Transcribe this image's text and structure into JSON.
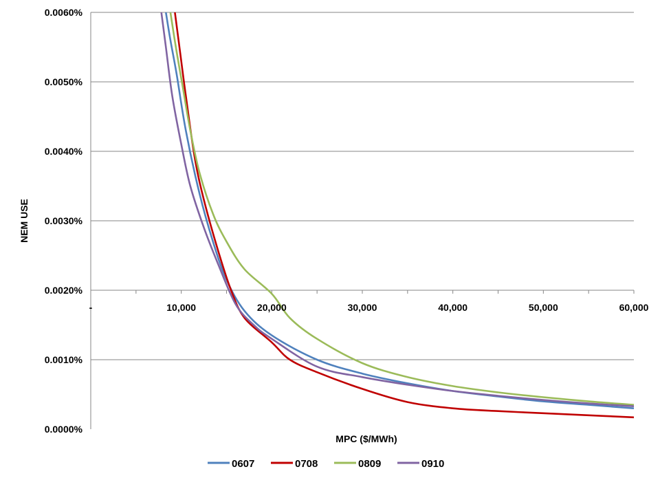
{
  "chart_data": {
    "type": "line",
    "xlabel": "MPC ($/MWh)",
    "ylabel": "NEM USE",
    "xlim": [
      0,
      60000
    ],
    "ylim": [
      0.0,
      0.006
    ],
    "x_ticks": [
      0,
      10000,
      20000,
      30000,
      40000,
      50000,
      60000
    ],
    "x_tick_labels": [
      "-",
      "10,000",
      "20,000",
      "30,000",
      "40,000",
      "50,000",
      "60,000"
    ],
    "y_ticks": [
      0.0,
      0.001,
      0.002,
      0.003,
      0.004,
      0.005,
      0.006
    ],
    "y_tick_labels": [
      "0.0000%",
      "0.0010%",
      "0.0020%",
      "0.0030%",
      "0.0040%",
      "0.0050%",
      "0.0060%"
    ],
    "x_axis_crosses_y_at": 0.002,
    "grid": {
      "horizontal": true,
      "vertical": false
    },
    "legend_position": "bottom",
    "series": [
      {
        "name": "0607",
        "color": "#4f81bd",
        "x": [
          8300,
          8800,
          9500,
          10500,
          12000,
          13500,
          15000,
          17000,
          20000,
          25000,
          30000,
          35000,
          40000,
          45000,
          50000,
          55000,
          60000
        ],
        "y": [
          0.006,
          0.0056,
          0.0051,
          0.0043,
          0.0034,
          0.0027,
          0.00215,
          0.0017,
          0.00135,
          0.001,
          0.0008,
          0.00066,
          0.00055,
          0.00047,
          0.0004,
          0.00035,
          0.0003
        ]
      },
      {
        "name": "0708",
        "color": "#c00000",
        "x": [
          9300,
          9800,
          10500,
          11500,
          12500,
          14000,
          15500,
          17000,
          20000,
          22000,
          25000,
          30000,
          35000,
          40000,
          45000,
          50000,
          55000,
          60000
        ],
        "y": [
          0.006,
          0.0055,
          0.0048,
          0.0039,
          0.0033,
          0.0026,
          0.002,
          0.0016,
          0.00125,
          0.001,
          0.00082,
          0.00058,
          0.00039,
          0.0003,
          0.00026,
          0.00023,
          0.0002,
          0.00017
        ]
      },
      {
        "name": "0809",
        "color": "#9bbb59",
        "x": [
          8800,
          9400,
          10200,
          11000,
          12000,
          13500,
          15000,
          17000,
          20000,
          22000,
          25000,
          30000,
          35000,
          40000,
          45000,
          50000,
          55000,
          60000
        ],
        "y": [
          0.006,
          0.0055,
          0.0049,
          0.0043,
          0.0037,
          0.0031,
          0.0027,
          0.0023,
          0.00195,
          0.0016,
          0.0013,
          0.00095,
          0.00075,
          0.00062,
          0.00053,
          0.00046,
          0.0004,
          0.00035
        ]
      },
      {
        "name": "0910",
        "color": "#8064a2",
        "x": [
          7800,
          8300,
          9000,
          10000,
          11000,
          12500,
          14000,
          16000,
          18000,
          20000,
          25000,
          30000,
          35000,
          40000,
          45000,
          50000,
          55000,
          60000
        ],
        "y": [
          0.006,
          0.0055,
          0.0048,
          0.0041,
          0.0035,
          0.0029,
          0.0024,
          0.0018,
          0.0015,
          0.0013,
          0.0009,
          0.00075,
          0.00064,
          0.00055,
          0.00048,
          0.00042,
          0.00037,
          0.00033
        ]
      }
    ]
  }
}
